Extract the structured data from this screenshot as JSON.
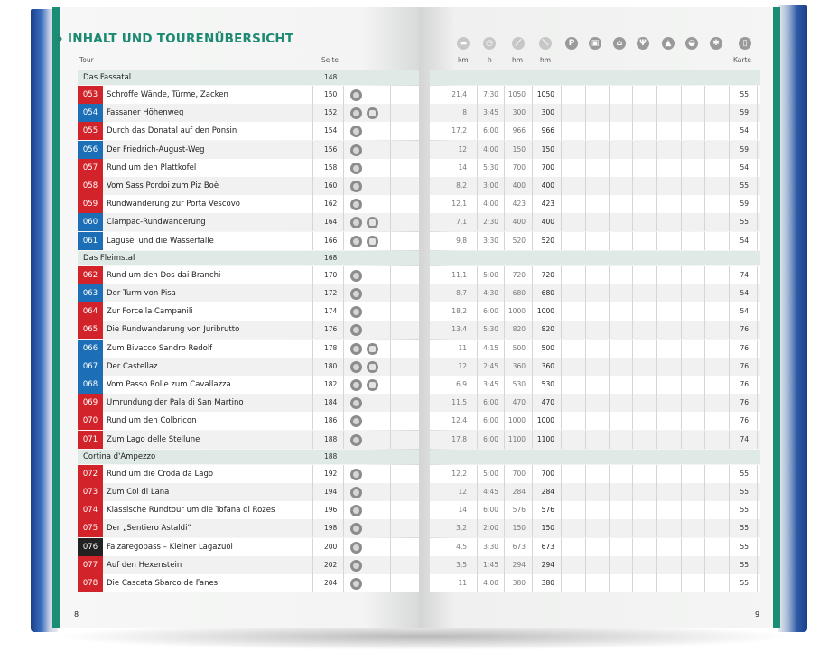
{
  "header": {
    "title": "INHALT UND TOURENÜBERSICHT",
    "tour_label": "Tour",
    "seite_label": "Seite",
    "km_label": "km",
    "h_label": "h",
    "hm_up_label": "hm",
    "hm_down_label": "hm",
    "karte_label": "Karte"
  },
  "header_icons": [
    "clock-icon",
    "stopwatch-icon",
    "ascent-icon",
    "descent-icon",
    "parking-icon",
    "bus-icon",
    "cablecar-icon",
    "restaurant-icon",
    "hut-icon",
    "gondola-icon",
    "winter-icon",
    "map-icon"
  ],
  "header_icon_glyphs": [
    "▬",
    "◷",
    "⟋",
    "⟍",
    "P",
    "▣",
    "⌂",
    "Ψ",
    "▲",
    "◒",
    "✱",
    "▯"
  ],
  "sections": [
    {
      "name": "Das Fassatal",
      "seite": "148",
      "tours": [
        {
          "code": "053",
          "color": "#d2232a",
          "name": "Schroffe Wände, Türme, Zacken",
          "seite": "150",
          "icons": 1,
          "km": "21,4",
          "h": "7:30",
          "up": "1050",
          "down": "1050",
          "karte": "55"
        },
        {
          "code": "054",
          "color": "#1c6fb6",
          "name": "Fassaner Höhenweg",
          "seite": "152",
          "icons": 2,
          "km": "8",
          "h": "3:45",
          "up": "300",
          "down": "300",
          "karte": "59"
        },
        {
          "code": "055",
          "color": "#d2232a",
          "name": "Durch das Donatal auf den Ponsin",
          "seite": "154",
          "icons": 1,
          "km": "17,2",
          "h": "6:00",
          "up": "966",
          "down": "966",
          "karte": "54"
        },
        {
          "code": "056",
          "color": "#1c6fb6",
          "name": "Der Friedrich-August-Weg",
          "seite": "156",
          "icons": 1,
          "km": "12",
          "h": "4:00",
          "up": "150",
          "down": "150",
          "karte": "59"
        },
        {
          "code": "057",
          "color": "#d2232a",
          "name": "Rund um den Plattkofel",
          "seite": "158",
          "icons": 1,
          "km": "14",
          "h": "5:30",
          "up": "700",
          "down": "700",
          "karte": "54"
        },
        {
          "code": "058",
          "color": "#d2232a",
          "name": "Vom Sass Pordoi zum Piz Boè",
          "seite": "160",
          "icons": 1,
          "km": "8,2",
          "h": "3:00",
          "up": "400",
          "down": "400",
          "karte": "55"
        },
        {
          "code": "059",
          "color": "#d2232a",
          "name": "Rundwanderung zur Porta Vescovo",
          "seite": "162",
          "icons": 1,
          "km": "12,1",
          "h": "4:00",
          "up": "423",
          "down": "423",
          "karte": "59"
        },
        {
          "code": "060",
          "color": "#1c6fb6",
          "name": "Ciampac-Rundwanderung",
          "seite": "164",
          "icons": 2,
          "km": "7,1",
          "h": "2:30",
          "up": "400",
          "down": "400",
          "karte": "55"
        },
        {
          "code": "061",
          "color": "#1c6fb6",
          "name": "Lagusèl und die Wasserfälle",
          "seite": "166",
          "icons": 2,
          "km": "9,8",
          "h": "3:30",
          "up": "520",
          "down": "520",
          "karte": "54"
        }
      ]
    },
    {
      "name": "Das Fleimstal",
      "seite": "168",
      "tours": [
        {
          "code": "062",
          "color": "#d2232a",
          "name": "Rund um den Dos dai Branchi",
          "seite": "170",
          "icons": 1,
          "km": "11,1",
          "h": "5:00",
          "up": "720",
          "down": "720",
          "karte": "74"
        },
        {
          "code": "063",
          "color": "#1c6fb6",
          "name": "Der Turm von Pisa",
          "seite": "172",
          "icons": 1,
          "km": "8,7",
          "h": "4:30",
          "up": "680",
          "down": "680",
          "karte": "54"
        },
        {
          "code": "064",
          "color": "#d2232a",
          "name": "Zur Forcella Campanili",
          "seite": "174",
          "icons": 1,
          "km": "18,2",
          "h": "6:00",
          "up": "1000",
          "down": "1000",
          "karte": "54"
        },
        {
          "code": "065",
          "color": "#d2232a",
          "name": "Die Rundwanderung von Juribrutto",
          "seite": "176",
          "icons": 1,
          "km": "13,4",
          "h": "5:30",
          "up": "820",
          "down": "820",
          "karte": "76"
        },
        {
          "code": "066",
          "color": "#1c6fb6",
          "name": "Zum Bivacco Sandro Redolf",
          "seite": "178",
          "icons": 2,
          "km": "11",
          "h": "4:15",
          "up": "500",
          "down": "500",
          "karte": "76"
        },
        {
          "code": "067",
          "color": "#1c6fb6",
          "name": "Der Castellaz",
          "seite": "180",
          "icons": 2,
          "km": "12",
          "h": "2:45",
          "up": "360",
          "down": "360",
          "karte": "76"
        },
        {
          "code": "068",
          "color": "#1c6fb6",
          "name": "Vom Passo Rolle zum Cavallazza",
          "seite": "182",
          "icons": 2,
          "km": "6,9",
          "h": "3:45",
          "up": "530",
          "down": "530",
          "karte": "76"
        },
        {
          "code": "069",
          "color": "#d2232a",
          "name": "Umrundung der Pala di San Martino",
          "seite": "184",
          "icons": 1,
          "km": "11,5",
          "h": "6:00",
          "up": "470",
          "down": "470",
          "karte": "76"
        },
        {
          "code": "070",
          "color": "#d2232a",
          "name": "Rund um den Colbricon",
          "seite": "186",
          "icons": 1,
          "km": "12,4",
          "h": "6:00",
          "up": "1000",
          "down": "1000",
          "karte": "76"
        },
        {
          "code": "071",
          "color": "#d2232a",
          "name": "Zum Lago delle Stellune",
          "seite": "188",
          "icons": 1,
          "km": "17,8",
          "h": "6:00",
          "up": "1100",
          "down": "1100",
          "karte": "74"
        }
      ]
    },
    {
      "name": "Cortina d'Ampezzo",
      "seite": "188",
      "tours": [
        {
          "code": "072",
          "color": "#d2232a",
          "name": "Rund um die Croda da Lago",
          "seite": "192",
          "icons": 1,
          "km": "12,2",
          "h": "5:00",
          "up": "700",
          "down": "700",
          "karte": "55"
        },
        {
          "code": "073",
          "color": "#d2232a",
          "name": "Zum Col di Lana",
          "seite": "194",
          "icons": 1,
          "km": "12",
          "h": "4:45",
          "up": "284",
          "down": "284",
          "karte": "55"
        },
        {
          "code": "074",
          "color": "#d2232a",
          "name": "Klassische Rundtour um die Tofana di Rozes",
          "seite": "196",
          "icons": 1,
          "km": "14",
          "h": "6:00",
          "up": "576",
          "down": "576",
          "karte": "55"
        },
        {
          "code": "075",
          "color": "#d2232a",
          "name": "Der „Sentiero Astaldi“",
          "seite": "198",
          "icons": 1,
          "km": "3,2",
          "h": "2:00",
          "up": "150",
          "down": "150",
          "karte": "55"
        },
        {
          "code": "076",
          "color": "#222222",
          "name": "Falzaregopass – Kleiner Lagazuoi",
          "seite": "200",
          "icons": 1,
          "km": "4,5",
          "h": "3:30",
          "up": "673",
          "down": "673",
          "karte": "55"
        },
        {
          "code": "077",
          "color": "#d2232a",
          "name": "Auf den Hexenstein",
          "seite": "202",
          "icons": 1,
          "km": "3,5",
          "h": "1:45",
          "up": "294",
          "down": "294",
          "karte": "55"
        },
        {
          "code": "078",
          "color": "#d2232a",
          "name": "Die Cascata Sbarco de Fanes",
          "seite": "204",
          "icons": 1,
          "km": "11",
          "h": "4:00",
          "up": "380",
          "down": "380",
          "karte": "55"
        }
      ]
    }
  ],
  "page_numbers": {
    "left": "8",
    "right": "9"
  }
}
